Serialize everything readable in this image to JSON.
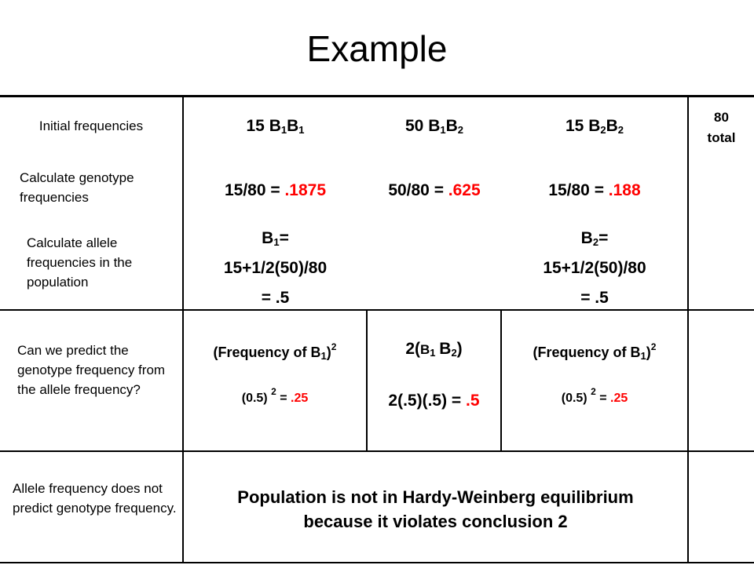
{
  "title": "Example",
  "rows": {
    "initial": {
      "label": "Initial frequencies",
      "b1b1_count": "15 B",
      "b1b2_count": "50 B",
      "b2b2_count": "15 B",
      "total_num": "80",
      "total_word": "total"
    },
    "genotype": {
      "label": "Calculate genotype frequencies",
      "b1b1_expr": "15/80 = ",
      "b1b1_val": ".1875",
      "b1b2_expr": "50/80 = ",
      "b1b2_val": ".625",
      "b2b2_expr": "15/80 = ",
      "b2b2_val": ".188"
    },
    "allele": {
      "label": "Calculate allele frequencies in the population",
      "b1_head": "B",
      "b1_eq": "=",
      "b1_formula": "15+1/2(50)/80",
      "b1_result": "= .5",
      "b2_head": "B",
      "b2_eq": "=",
      "b2_formula": "15+1/2(50)/80",
      "b2_result": "= .5"
    },
    "predict": {
      "label": "Can we predict the genotype frequency from the allele frequency?",
      "left_head": "(Frequency of B",
      "left_calc": "(0.5) ",
      "left_eq": " = ",
      "left_val": ".25",
      "mid_head": "2(",
      "mid_calc": "2(.5)(.5) = ",
      "mid_val": ".5",
      "right_head": "(Frequency of B",
      "right_calc": "(0.5) ",
      "right_eq": " = ",
      "right_val": ".25"
    },
    "conclusion": {
      "label": "Allele frequency does not predict genotype frequency.",
      "text_line1": "Population is not in Hardy-Weinberg equilibrium",
      "text_line2": "because it violates conclusion 2"
    }
  },
  "colors": {
    "highlight": "#ff0000",
    "border": "#000000"
  }
}
